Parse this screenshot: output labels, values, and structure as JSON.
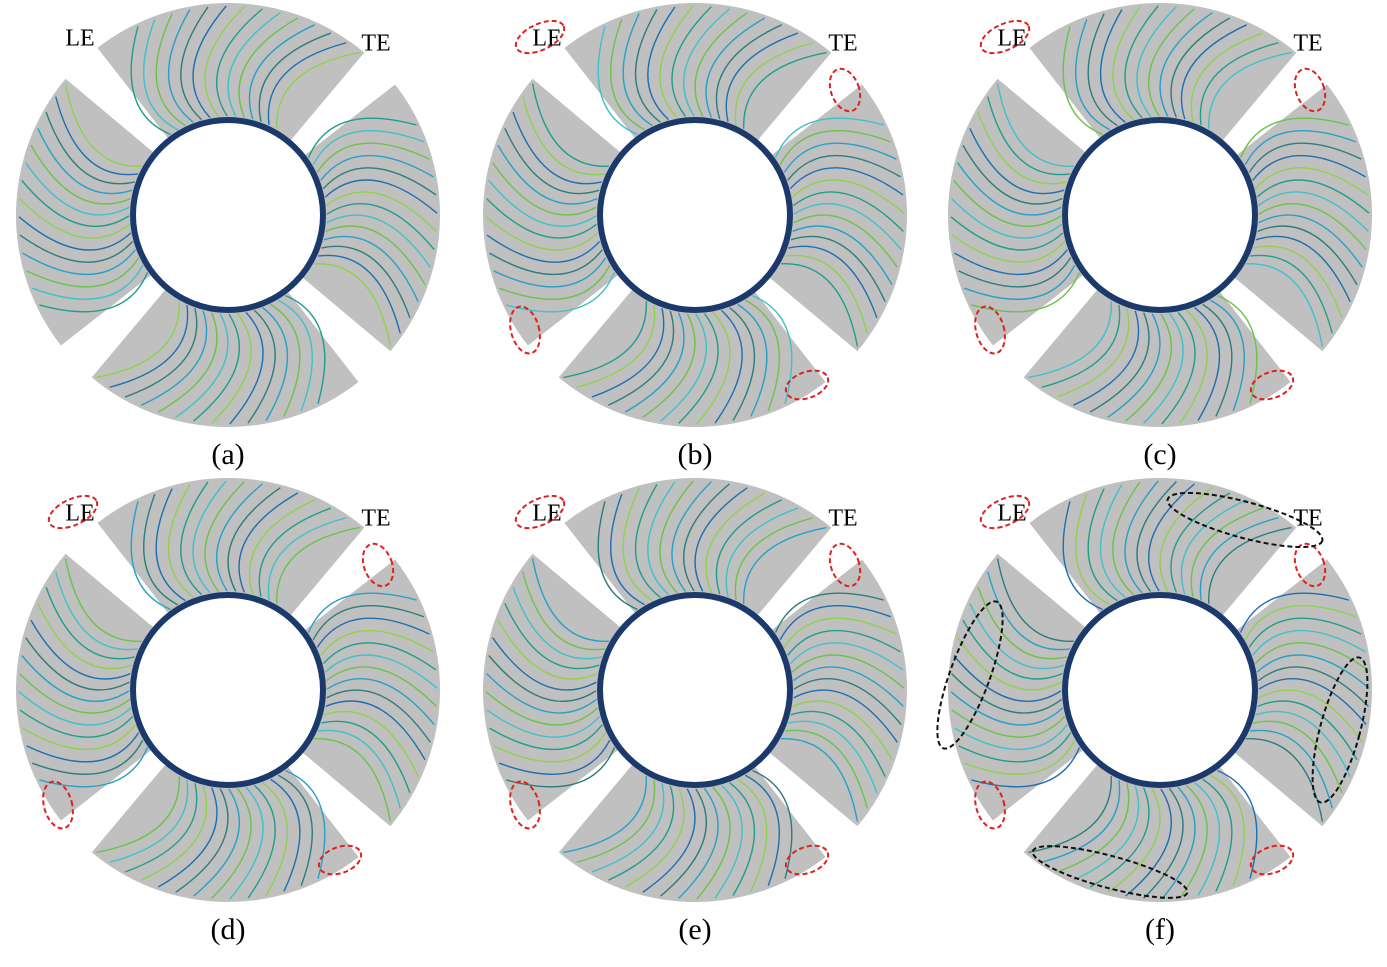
{
  "panels": [
    {
      "caption": "(a)",
      "le": "LE",
      "te": "TE"
    },
    {
      "caption": "(b)",
      "le": "LE",
      "te": "TE"
    },
    {
      "caption": "(c)",
      "le": "LE",
      "te": "TE"
    },
    {
      "caption": "(d)",
      "le": "LE",
      "te": "TE"
    },
    {
      "caption": "(e)",
      "le": "LE",
      "te": "TE"
    },
    {
      "caption": "(f)",
      "le": "LE",
      "te": "TE"
    }
  ]
}
